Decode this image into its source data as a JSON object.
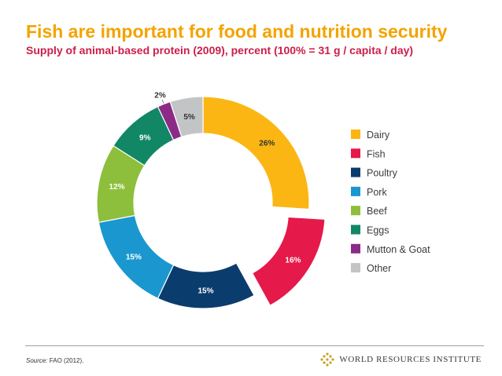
{
  "title": "Fish are important for food and nutrition security",
  "subtitle": "Supply of animal-based protein (2009), percent (100% = 31 g / capita / day)",
  "source": {
    "label": "Source:",
    "text": " FAO (2012)."
  },
  "organization": "WORLD RESOURCES INSTITUTE",
  "colors": {
    "Dairy": "#fbb614",
    "Fish": "#e5194a",
    "Poultry": "#0b3c6e",
    "Pork": "#1a97cf",
    "Beef": "#8dbf3c",
    "Eggs": "#118766",
    "Mutton & Goat": "#8c2b87",
    "Other": "#c3c4c5",
    "title": "#f4a300",
    "subtitle": "#cc1e4a"
  },
  "chart_data": {
    "type": "pie",
    "variant": "donut",
    "title": "Fish are important for food and nutrition security",
    "subtitle": "Supply of animal-based protein (2009), percent (100% = 31 g / capita / day)",
    "categories": [
      "Dairy",
      "Fish",
      "Poultry",
      "Pork",
      "Beef",
      "Eggs",
      "Mutton & Goat",
      "Other"
    ],
    "values": [
      26,
      16,
      15,
      15,
      12,
      9,
      2,
      5
    ],
    "labels": [
      "26%",
      "16%",
      "15%",
      "15%",
      "12%",
      "9%",
      "2%",
      "5%"
    ],
    "exploded": [
      "Fish"
    ],
    "legend_position": "right"
  }
}
